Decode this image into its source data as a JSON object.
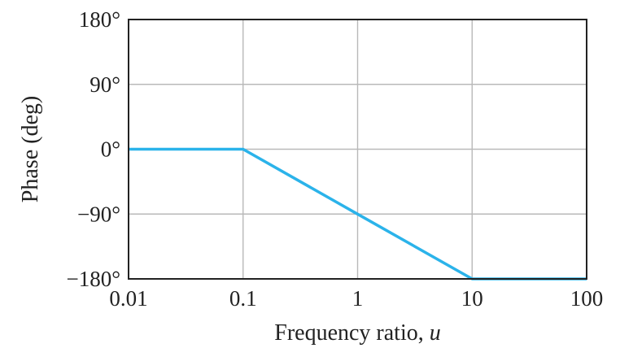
{
  "chart_data": {
    "type": "line",
    "xlabel": "Frequency ratio, ",
    "xlabel_var": "u",
    "ylabel": "Phase (deg)",
    "x_scale": "log",
    "xlim": [
      0.01,
      100
    ],
    "ylim": [
      -180,
      180
    ],
    "grid": true,
    "x_ticks": [
      {
        "value": 0.01,
        "label": "0.01"
      },
      {
        "value": 0.1,
        "label": "0.1"
      },
      {
        "value": 1,
        "label": "1"
      },
      {
        "value": 10,
        "label": "10"
      },
      {
        "value": 100,
        "label": "100"
      }
    ],
    "y_ticks": [
      {
        "value": 180,
        "label": "180°"
      },
      {
        "value": 90,
        "label": "90°"
      },
      {
        "value": 0,
        "label": "0°"
      },
      {
        "value": -90,
        "label": "−90°"
      },
      {
        "value": -180,
        "label": "−180°"
      }
    ],
    "series": [
      {
        "color": "#2bb3ea",
        "x": [
          0.01,
          0.1,
          1,
          10,
          100
        ],
        "y": [
          0,
          0,
          -90,
          -180,
          -180
        ]
      }
    ]
  }
}
